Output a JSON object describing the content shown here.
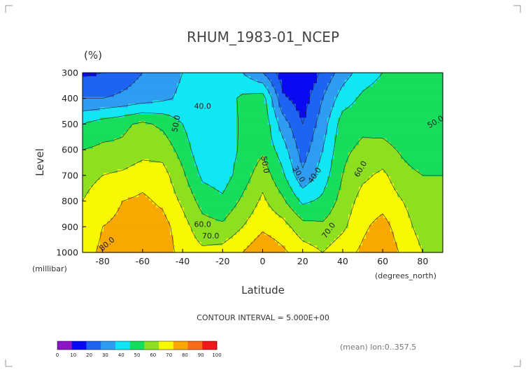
{
  "chart_data": {
    "type": "heatmap",
    "title": "RHUM_1983-01_NCEP",
    "unit": "(%)",
    "xlabel": "Latitude",
    "ylabel": "Level",
    "x_unit": "(degrees_north)",
    "y_unit": "(millibar)",
    "x_ticks": [
      "-80",
      "-60",
      "-40",
      "-20",
      "0",
      "20",
      "40",
      "60",
      "80"
    ],
    "y_ticks": [
      "300",
      "400",
      "500",
      "600",
      "700",
      "800",
      "900",
      "1000"
    ],
    "xlim": [
      -90,
      90
    ],
    "ylim": [
      300,
      1000
    ],
    "contour_note": "CONTOUR INTERVAL = 5.000E+00",
    "footer_note": "(mean) lon:0..357.5",
    "colorbar": {
      "ticks": [
        "0",
        "10",
        "20",
        "30",
        "40",
        "50",
        "60",
        "70",
        "80",
        "90",
        "100"
      ],
      "colors": [
        "#8b16c4",
        "#0a0af2",
        "#1e64f2",
        "#2e9cf0",
        "#11e6f4",
        "#16dd5c",
        "#8ce020",
        "#f8f800",
        "#f8a800",
        "#fa6c1a",
        "#f0181c"
      ]
    },
    "contour_labels": [
      "40.0",
      "50.0",
      "50.0",
      "50.0",
      "30.0",
      "40.0",
      "60.0",
      "60.0",
      "70.0",
      "70.0",
      "80.0"
    ],
    "lat_grid": [
      -90,
      -80,
      -70,
      -60,
      -50,
      -40,
      -30,
      -20,
      -10,
      0,
      10,
      20,
      30,
      40,
      50,
      60,
      70,
      80,
      90
    ],
    "levels": [
      300,
      400,
      500,
      600,
      700,
      800,
      900,
      1000
    ],
    "values": [
      [
        18,
        20,
        25,
        30,
        35,
        40,
        48,
        50,
        40,
        30,
        15,
        10,
        22,
        35,
        45,
        50,
        52,
        55,
        60
      ],
      [
        30,
        30,
        32,
        35,
        38,
        42,
        40,
        45,
        52,
        55,
        22,
        15,
        30,
        45,
        52,
        55,
        50,
        52,
        55
      ],
      [
        50,
        55,
        58,
        62,
        58,
        50,
        40,
        43,
        52,
        58,
        35,
        20,
        35,
        55,
        58,
        55,
        52,
        50,
        50
      ],
      [
        60,
        62,
        62,
        66,
        66,
        56,
        42,
        44,
        52,
        58,
        45,
        25,
        40,
        58,
        62,
        64,
        58,
        52,
        55
      ],
      [
        66,
        70,
        72,
        76,
        74,
        62,
        48,
        45,
        55,
        66,
        52,
        32,
        45,
        60,
        68,
        72,
        64,
        60,
        60
      ],
      [
        70,
        76,
        80,
        82,
        78,
        68,
        56,
        52,
        62,
        72,
        62,
        48,
        52,
        64,
        74,
        76,
        70,
        64,
        62
      ],
      [
        72,
        80,
        82,
        86,
        84,
        74,
        64,
        62,
        70,
        78,
        74,
        64,
        62,
        68,
        78,
        84,
        74,
        66,
        64
      ],
      [
        76,
        82,
        86,
        90,
        86,
        76,
        72,
        74,
        80,
        88,
        82,
        75,
        70,
        76,
        82,
        88,
        78,
        70,
        66
      ]
    ]
  }
}
